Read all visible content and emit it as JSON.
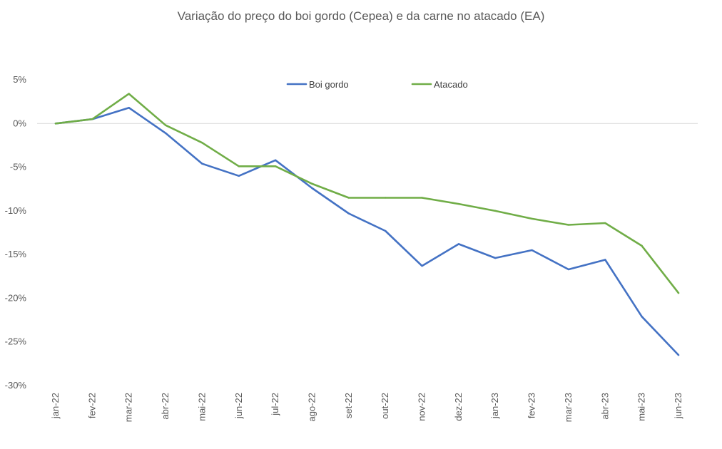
{
  "chart_data": {
    "type": "line",
    "title": "Variação do preço do boi gordo (Cepea) e da carne no atacado (EA)",
    "xlabel": "",
    "ylabel": "",
    "categories": [
      "jan-22",
      "fev-22",
      "mar-22",
      "abr-22",
      "mai-22",
      "jun-22",
      "jul-22",
      "ago-22",
      "set-22",
      "out-22",
      "nov-22",
      "dez-22",
      "jan-23",
      "fev-23",
      "mar-23",
      "abr-23",
      "mai-23",
      "jun-23"
    ],
    "ylim": [
      -30,
      5
    ],
    "yticks": [
      5,
      0,
      -5,
      -10,
      -15,
      -20,
      -25,
      -30
    ],
    "ytick_labels": [
      "5%",
      "0%",
      "-5%",
      "-10%",
      "-15%",
      "-20%",
      "-25%",
      "-30%"
    ],
    "grid": false,
    "zero_line": true,
    "legend_position": "top-center",
    "series": [
      {
        "name": "Boi gordo",
        "color": "#4472C4",
        "values": [
          0,
          0.5,
          1.8,
          -1.1,
          -4.6,
          -6.0,
          -4.2,
          -7.4,
          -10.3,
          -12.3,
          -16.3,
          -13.8,
          -15.4,
          -14.5,
          -16.7,
          -15.6,
          -22.1,
          -26.5
        ]
      },
      {
        "name": "Atacado",
        "color": "#70AD47",
        "values": [
          0,
          0.5,
          3.4,
          -0.2,
          -2.2,
          -4.9,
          -4.9,
          -6.9,
          -8.5,
          -8.5,
          -8.5,
          -9.2,
          -10.0,
          -10.9,
          -11.6,
          -11.4,
          -14.0,
          -19.4
        ]
      }
    ]
  }
}
